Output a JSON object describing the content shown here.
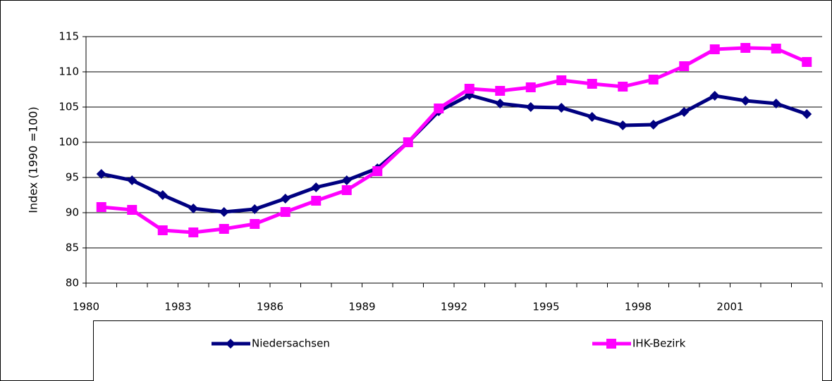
{
  "chart_data": {
    "type": "line",
    "y_label": "Index (1990 =100)",
    "categories": [
      "1980",
      null,
      null,
      "1983",
      null,
      null,
      "1986",
      null,
      null,
      "1989",
      null,
      null,
      "1992",
      null,
      null,
      "1995",
      null,
      null,
      "1998",
      null,
      null,
      "2001",
      null,
      null
    ],
    "series": [
      {
        "name": "Niedersachsen",
        "color": "#000080",
        "marker": "diamond",
        "values": [
          95.5,
          94.6,
          92.5,
          90.6,
          90.1,
          90.5,
          92.0,
          93.6,
          94.6,
          96.3,
          100,
          104.4,
          106.7,
          105.5,
          105.0,
          104.9,
          103.6,
          102.4,
          102.5,
          104.3,
          106.6,
          105.9,
          105.5,
          104.0
        ]
      },
      {
        "name": "IHK-Bezirk",
        "color": "#ff00ff",
        "marker": "square",
        "values": [
          90.8,
          90.4,
          87.5,
          87.2,
          87.7,
          88.4,
          90.1,
          91.7,
          93.2,
          95.9,
          100,
          104.8,
          107.6,
          107.3,
          107.8,
          108.8,
          108.3,
          107.9,
          108.9,
          110.8,
          113.2,
          113.4,
          113.3,
          111.4
        ]
      }
    ],
    "ylim": [
      80,
      115
    ],
    "yticks": [
      80,
      85,
      90,
      95,
      100,
      105,
      110,
      115
    ],
    "grid": true,
    "legend": "bottom"
  }
}
